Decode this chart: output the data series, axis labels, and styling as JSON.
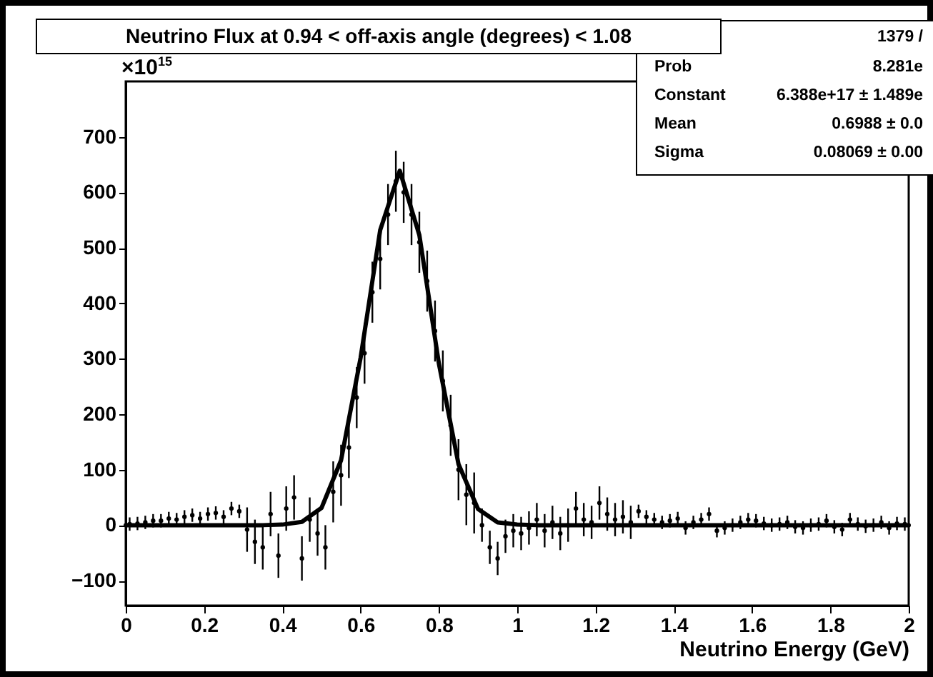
{
  "chart_data": {
    "type": "scatter",
    "title": "Neutrino Flux at  0.94 < off-axis angle (degrees) <  1.08",
    "xlabel": "Neutrino Energy (GeV)",
    "annotations": [
      "×10$^{15}$",
      "1379 /",
      "Prob",
      "8.281e",
      "Constant",
      "6.388e+17 ± 1.489e",
      "Mean",
      "0.6988 ± 0.0",
      "Sigma",
      "0.08069 ± 0.00"
    ],
    "xlim": [
      0,
      2
    ],
    "xticks": [
      0,
      0.2,
      0.4,
      0.6,
      0.8,
      1,
      1.2,
      1.4,
      1.6,
      1.8,
      2
    ],
    "ylim": [
      -145,
      800
    ],
    "yticks": [
      -100,
      0,
      100,
      200,
      300,
      400,
      500,
      600,
      700
    ],
    "series": [
      {
        "type": "scatter",
        "color": "#000000",
        "marker": "circle",
        "x": [
          0.01,
          0.03,
          0.05,
          0.07,
          0.09,
          0.11,
          0.13,
          0.15,
          0.17,
          0.19,
          0.21,
          0.23,
          0.25,
          0.27,
          0.29,
          0.31,
          0.33,
          0.35,
          0.37,
          0.39,
          0.41,
          0.43,
          0.45,
          0.47,
          0.49,
          0.51,
          0.53,
          0.55,
          0.57,
          0.59,
          0.61,
          0.63,
          0.65,
          0.67,
          0.69,
          0.71,
          0.73,
          0.75,
          0.77,
          0.79,
          0.81,
          0.83,
          0.85,
          0.87,
          0.89,
          0.91,
          0.93,
          0.95,
          0.97,
          0.99,
          1.01,
          1.03,
          1.05,
          1.07,
          1.09,
          1.11,
          1.13,
          1.15,
          1.17,
          1.19,
          1.21,
          1.23,
          1.25,
          1.27,
          1.29,
          1.31,
          1.33,
          1.35,
          1.37,
          1.39,
          1.41,
          1.43,
          1.45,
          1.47,
          1.49,
          1.51,
          1.53,
          1.55,
          1.57,
          1.59,
          1.61,
          1.63,
          1.65,
          1.67,
          1.69,
          1.71,
          1.73,
          1.75,
          1.77,
          1.79,
          1.81,
          1.83,
          1.85,
          1.87,
          1.89,
          1.91,
          1.93,
          1.95,
          1.97,
          1.99
        ],
        "values": [
          2,
          3,
          5,
          8,
          8,
          12,
          10,
          15,
          18,
          12,
          20,
          22,
          15,
          30,
          25,
          -8,
          -30,
          -40,
          20,
          -55,
          30,
          50,
          -60,
          10,
          -15,
          -40,
          60,
          90,
          140,
          230,
          310,
          420,
          480,
          560,
          620,
          600,
          560,
          510,
          440,
          350,
          260,
          180,
          100,
          55,
          40,
          0,
          -40,
          -60,
          -20,
          -10,
          -15,
          -5,
          10,
          -10,
          5,
          -15,
          0,
          30,
          10,
          5,
          40,
          20,
          10,
          15,
          5,
          25,
          15,
          10,
          5,
          8,
          12,
          -5,
          5,
          10,
          20,
          -10,
          -5,
          0,
          5,
          10,
          8,
          3,
          0,
          2,
          5,
          -3,
          -5,
          0,
          2,
          8,
          -3,
          -8,
          10,
          2,
          -2,
          0,
          5,
          -5,
          3,
          2
        ],
        "errors": [
          12,
          12,
          12,
          12,
          12,
          12,
          12,
          12,
          12,
          12,
          12,
          12,
          12,
          12,
          12,
          40,
          40,
          40,
          40,
          40,
          40,
          40,
          40,
          40,
          40,
          40,
          55,
          55,
          55,
          55,
          55,
          55,
          55,
          55,
          55,
          55,
          55,
          55,
          55,
          55,
          55,
          55,
          55,
          55,
          55,
          30,
          30,
          30,
          30,
          30,
          30,
          30,
          30,
          30,
          30,
          30,
          30,
          30,
          30,
          30,
          30,
          30,
          30,
          30,
          30,
          12,
          12,
          12,
          12,
          12,
          12,
          12,
          12,
          12,
          12,
          12,
          12,
          12,
          12,
          12,
          12,
          12,
          12,
          12,
          12,
          12,
          12,
          12,
          12,
          12,
          12,
          12,
          12,
          12,
          12,
          12,
          12,
          12,
          12,
          12
        ]
      },
      {
        "type": "line",
        "color": "#000000",
        "x": [
          0,
          0.35,
          0.4,
          0.45,
          0.5,
          0.55,
          0.6,
          0.65,
          0.7,
          0.75,
          0.8,
          0.85,
          0.9,
          0.95,
          1.0,
          1.05,
          2
        ],
        "values": [
          0,
          0,
          1,
          6,
          31,
          117,
          302,
          532,
          639,
          523,
          291,
          110,
          29,
          5,
          1,
          0,
          0
        ]
      }
    ]
  }
}
